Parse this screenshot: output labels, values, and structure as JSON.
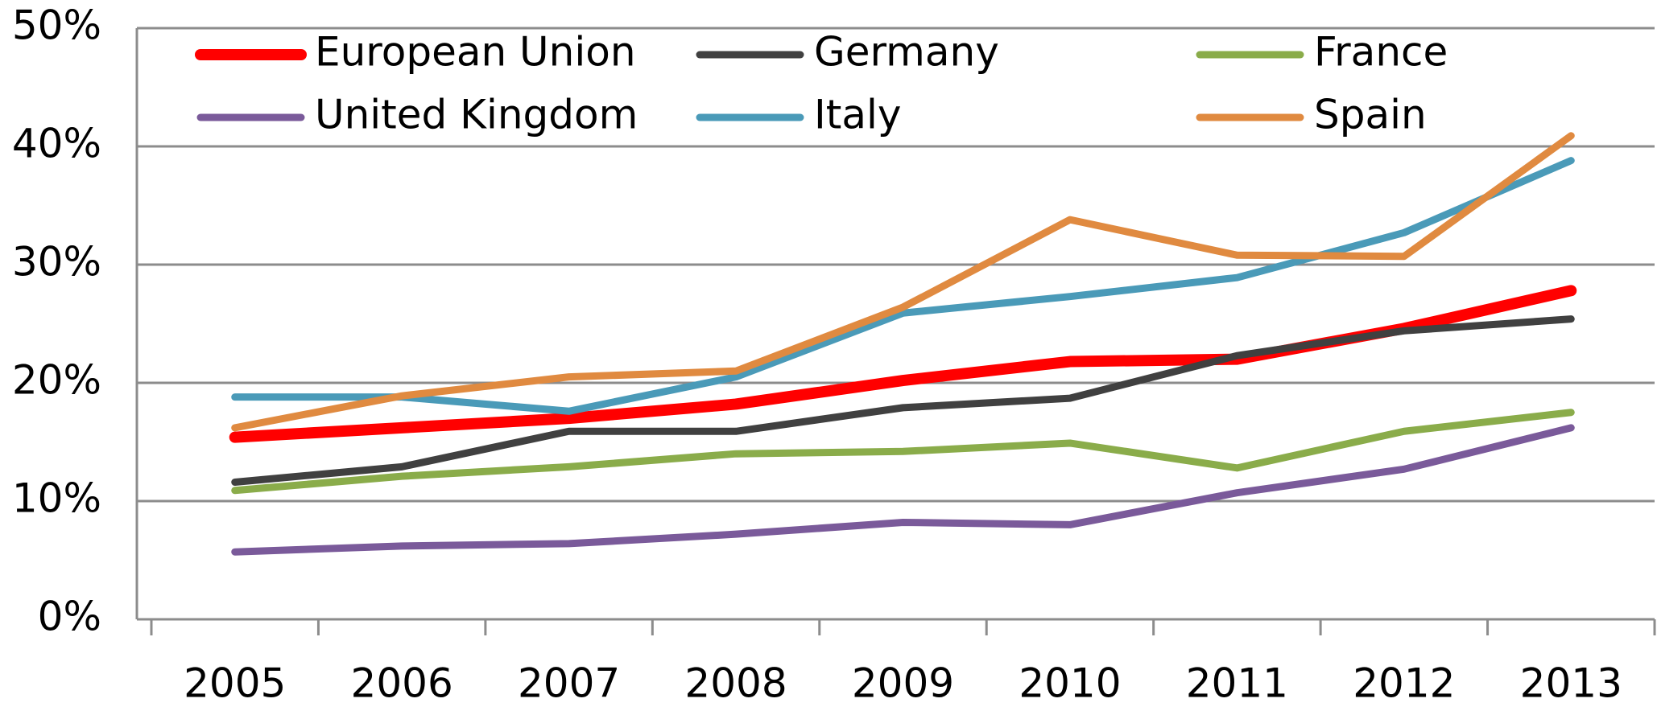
{
  "chart_data": {
    "type": "line",
    "categories": [
      "2005",
      "2006",
      "2007",
      "2008",
      "2009",
      "2010",
      "2011",
      "2012",
      "2013"
    ],
    "series": [
      {
        "name": "European Union",
        "color": "#ff0000",
        "values": [
          15.4,
          16.2,
          17.0,
          18.2,
          20.2,
          21.8,
          22.0,
          24.6,
          27.8
        ]
      },
      {
        "name": "Germany",
        "color": "#404040",
        "values": [
          11.6,
          12.9,
          15.9,
          15.9,
          17.9,
          18.7,
          22.3,
          24.4,
          25.4
        ]
      },
      {
        "name": "France",
        "color": "#8aac4a",
        "values": [
          10.9,
          12.1,
          12.9,
          14.0,
          14.2,
          14.9,
          12.8,
          15.9,
          17.5
        ]
      },
      {
        "name": "United Kingdom",
        "color": "#7a5a9a",
        "values": [
          5.7,
          6.2,
          6.4,
          7.2,
          8.2,
          8.0,
          10.7,
          12.7,
          16.2
        ]
      },
      {
        "name": "Italy",
        "color": "#4a9ab8",
        "values": [
          18.8,
          18.8,
          17.6,
          20.5,
          25.9,
          27.3,
          28.9,
          32.7,
          38.8
        ]
      },
      {
        "name": "Spain",
        "color": "#e08a40",
        "values": [
          16.2,
          18.9,
          20.5,
          21.0,
          26.4,
          33.8,
          30.8,
          30.7,
          40.9
        ]
      }
    ],
    "ylim": [
      0,
      50
    ],
    "yticks": [
      {
        "value": 0,
        "label": "0%"
      },
      {
        "value": 10,
        "label": "10%"
      },
      {
        "value": 20,
        "label": "20%"
      },
      {
        "value": 30,
        "label": "30%"
      },
      {
        "value": 40,
        "label": "40%"
      },
      {
        "value": 50,
        "label": "50%"
      }
    ],
    "grid": true,
    "legend": "top"
  }
}
